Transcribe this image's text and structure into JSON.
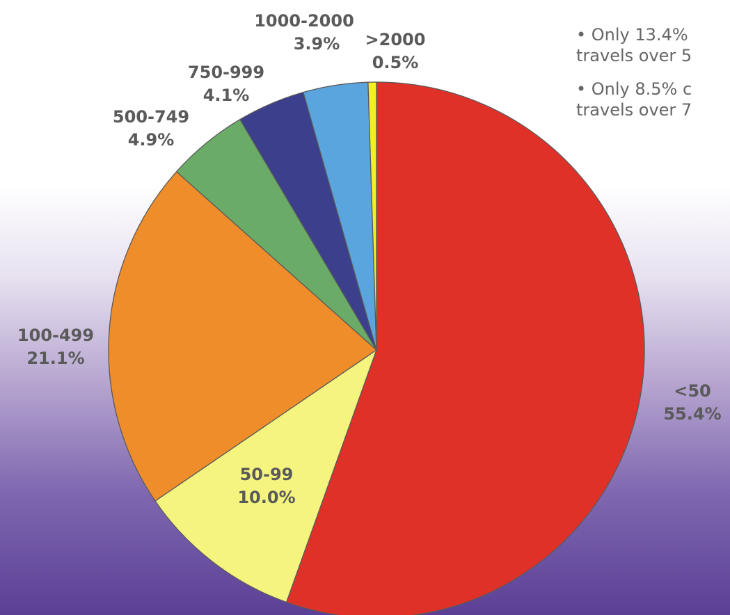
{
  "chart_data": {
    "type": "pie",
    "slices": [
      {
        "label": "<50",
        "value": 55.4,
        "value_label": "55.4%",
        "color": "#e03129"
      },
      {
        "label": "50-99",
        "value": 10.0,
        "value_label": "10.0%",
        "color": "#f4f47e"
      },
      {
        "label": "100-499",
        "value": 21.1,
        "value_label": "21.1%",
        "color": "#ef8d2a"
      },
      {
        "label": "500-749",
        "value": 4.9,
        "value_label": "4.9%",
        "color": "#6aac67"
      },
      {
        "label": "750-999",
        "value": 4.1,
        "value_label": "4.1%",
        "color": "#3b3f8c"
      },
      {
        "label": "1000-2000",
        "value": 3.9,
        "value_label": "3.9%",
        "color": "#5aa5dd"
      },
      {
        "label": ">2000",
        "value": 0.5,
        "value_label": "0.5%",
        "color": "#f2f022"
      }
    ]
  },
  "notes": [
    {
      "line1": "• Only 13.4%",
      "line2": "travels over 5"
    },
    {
      "line1": "• Only 8.5% c",
      "line2": "travels over 7"
    }
  ]
}
